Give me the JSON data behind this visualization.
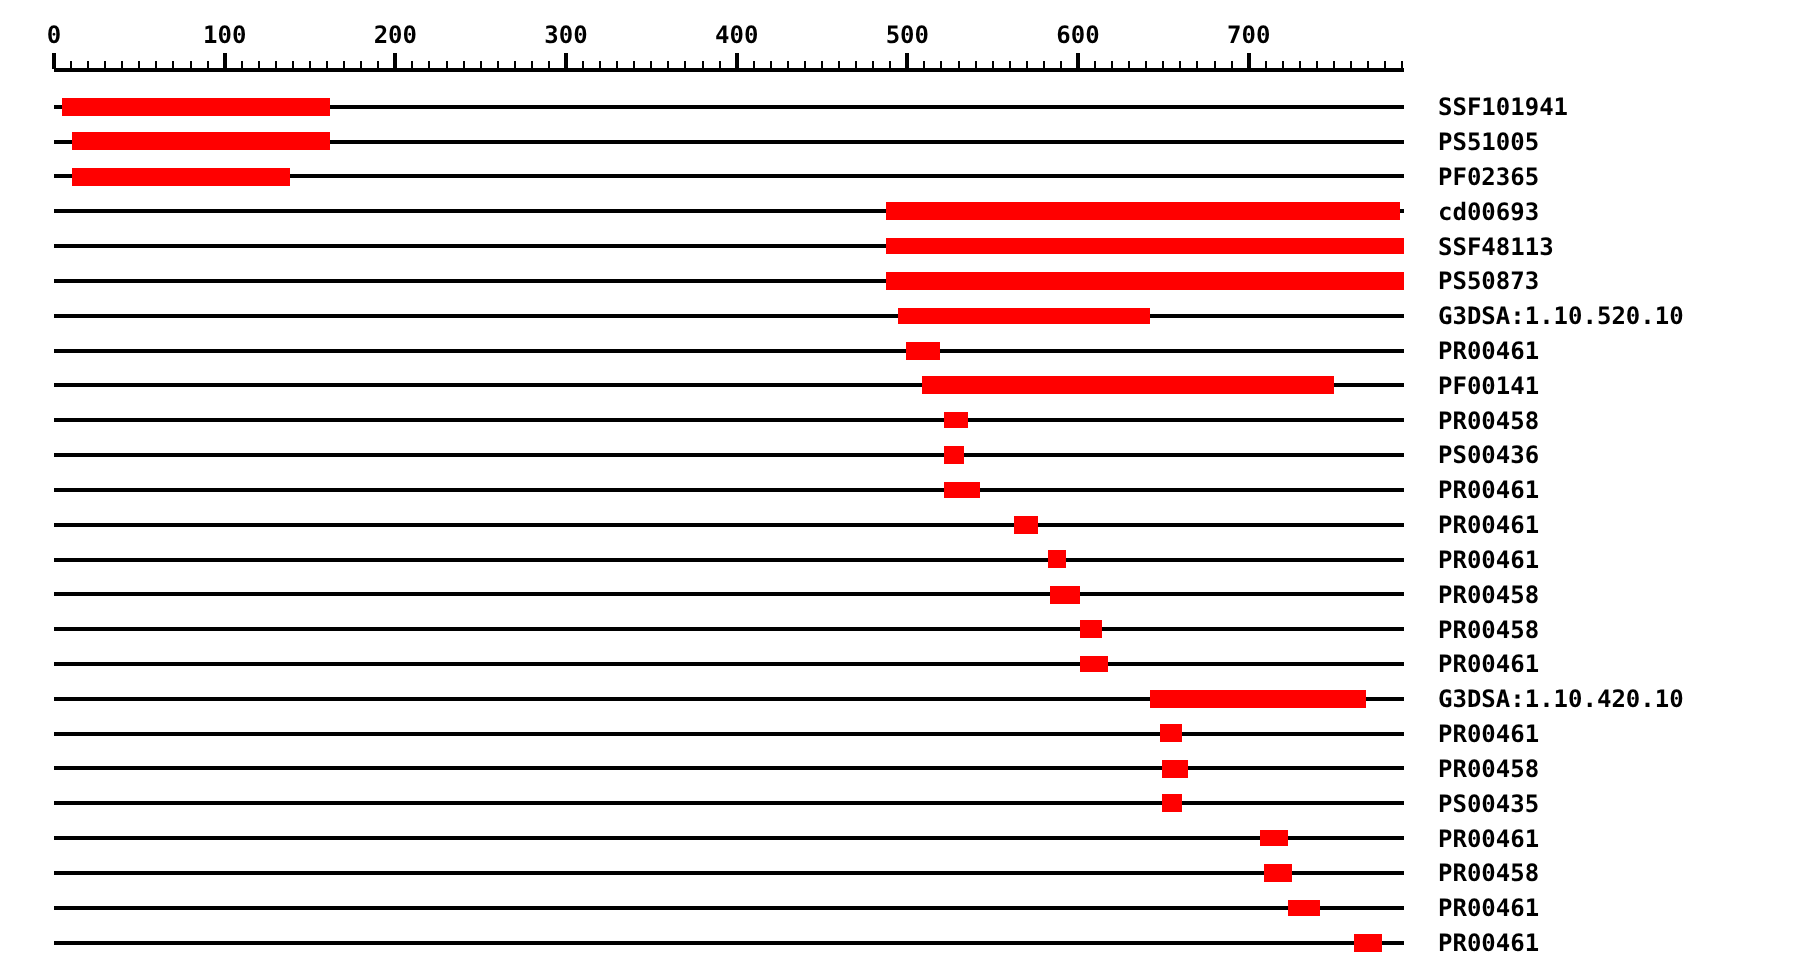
{
  "chart_data": {
    "type": "bar",
    "orientation": "horizontal",
    "categories": [
      "SSF101941",
      "PS51005",
      "PF02365",
      "cd00693",
      "SSF48113",
      "PS50873",
      "G3DSA:1.10.520.10",
      "PR00461",
      "PF00141",
      "PR00458",
      "PS00436",
      "PR00461",
      "PR00461",
      "PR00461",
      "PR00458",
      "PR00458",
      "PR00461",
      "G3DSA:1.10.420.10",
      "PR00461",
      "PR00458",
      "PS00435",
      "PR00461",
      "PR00458",
      "PR00461",
      "PR00461"
    ],
    "base": [
      5,
      10,
      11,
      488,
      488,
      488,
      495,
      499,
      508,
      521,
      521,
      522,
      563,
      582,
      583,
      601,
      601,
      642,
      648,
      649,
      649,
      707,
      709,
      723,
      762
    ],
    "values": [
      157,
      152,
      127,
      301,
      303,
      303,
      147,
      20,
      242,
      15,
      12,
      21,
      14,
      11,
      18,
      13,
      16,
      127,
      13,
      16,
      12,
      16,
      16,
      19,
      16
    ],
    "color": "#ff0000",
    "xlim": [
      0,
      791
    ],
    "xticks": [
      0,
      {
        "value": 10,
        "label": null
      },
      {
        "value": 20,
        "label": null
      },
      {
        "value": 30,
        "label": null
      },
      {
        "value": 40,
        "label": null
      },
      {
        "value": 50,
        "label": null
      },
      {
        "value": 60,
        "label": null
      },
      {
        "value": 70,
        "label": null
      },
      {
        "value": 80,
        "label": null
      },
      {
        "value": 90,
        "label": null
      },
      100,
      {
        "value": 110,
        "label": null
      },
      {
        "value": 120,
        "label": null
      },
      {
        "value": 130,
        "label": null
      },
      {
        "value": 140,
        "label": null
      },
      {
        "value": 150,
        "label": null
      },
      {
        "value": 160,
        "label": null
      },
      {
        "value": 170,
        "label": null
      },
      {
        "value": 180,
        "label": null
      },
      {
        "value": 190,
        "label": null
      },
      200,
      {
        "value": 210,
        "label": null
      },
      {
        "value": 220,
        "label": null
      },
      {
        "value": 230,
        "label": null
      },
      {
        "value": 240,
        "label": null
      },
      {
        "value": 250,
        "label": null
      },
      {
        "value": 260,
        "label": null
      },
      {
        "value": 270,
        "label": null
      },
      {
        "value": 280,
        "label": null
      },
      {
        "value": 290,
        "label": null
      },
      300,
      {
        "value": 310,
        "label": null
      },
      {
        "value": 320,
        "label": null
      },
      {
        "value": 330,
        "label": null
      },
      {
        "value": 340,
        "label": null
      },
      {
        "value": 350,
        "label": null
      },
      {
        "value": 360,
        "label": null
      },
      {
        "value": 370,
        "label": null
      },
      {
        "value": 380,
        "label": null
      },
      {
        "value": 390,
        "label": null
      },
      400,
      {
        "value": 410,
        "label": null
      },
      {
        "value": 420,
        "label": null
      },
      {
        "value": 430,
        "label": null
      },
      {
        "value": 440,
        "label": null
      },
      {
        "value": 450,
        "label": null
      },
      {
        "value": 460,
        "label": null
      },
      {
        "value": 470,
        "label": null
      },
      {
        "value": 480,
        "label": null
      },
      {
        "value": 490,
        "label": null
      },
      500,
      {
        "value": 510,
        "label": null
      },
      {
        "value": 520,
        "label": null
      },
      {
        "value": 530,
        "label": null
      },
      {
        "value": 540,
        "label": null
      },
      {
        "value": 550,
        "label": null
      },
      {
        "value": 560,
        "label": null
      },
      {
        "value": 570,
        "label": null
      },
      {
        "value": 580,
        "label": null
      },
      {
        "value": 590,
        "label": null
      },
      600,
      {
        "value": 610,
        "label": null
      },
      {
        "value": 620,
        "label": null
      },
      {
        "value": 630,
        "label": null
      },
      {
        "value": 640,
        "label": null
      },
      {
        "value": 650,
        "label": null
      },
      {
        "value": 660,
        "label": null
      },
      {
        "value": 670,
        "label": null
      },
      {
        "value": 680,
        "label": null
      },
      {
        "value": 690,
        "label": null
      },
      700,
      {
        "value": 710,
        "label": null
      },
      {
        "value": 720,
        "label": null
      },
      {
        "value": 730,
        "label": null
      },
      {
        "value": 740,
        "label": null
      },
      {
        "value": 750,
        "label": null
      },
      {
        "value": 760,
        "label": null
      },
      {
        "value": 770,
        "label": null
      },
      {
        "value": 780,
        "label": null
      },
      {
        "value": 790,
        "label": null
      }
    ],
    "grid": "y"
  }
}
